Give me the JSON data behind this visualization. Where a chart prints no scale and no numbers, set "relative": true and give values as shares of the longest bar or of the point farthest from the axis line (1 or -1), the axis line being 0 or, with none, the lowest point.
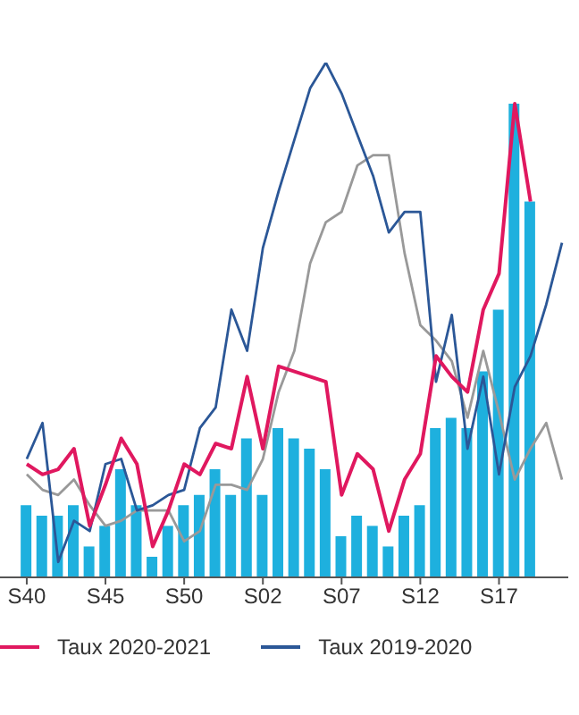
{
  "chart_data": {
    "type": "line",
    "relative": true,
    "categories": [
      "S40",
      null,
      null,
      null,
      null,
      "S45",
      null,
      null,
      null,
      null,
      "S50",
      null,
      null,
      null,
      null,
      "S02",
      null,
      null,
      null,
      null,
      "S07",
      null,
      null,
      null,
      null,
      "S12",
      null,
      null,
      null,
      null,
      "S17",
      null,
      null,
      null,
      null
    ],
    "series": [
      {
        "type": "bar",
        "color": "#1eb0de",
        "values": [
          0.14,
          0.12,
          0.12,
          0.14,
          0.06,
          0.1,
          0.21,
          0.14,
          0.04,
          0.1,
          0.14,
          0.16,
          0.21,
          0.16,
          0.27,
          0.16,
          0.29,
          0.27,
          0.25,
          0.21,
          0.08,
          0.12,
          0.1,
          0.06,
          0.12,
          0.14,
          0.29,
          0.31,
          0.29,
          0.4,
          0.52,
          0.92,
          0.73,
          null,
          null
        ]
      },
      {
        "color": "#999999",
        "values": [
          0.2,
          0.17,
          0.16,
          0.19,
          0.14,
          0.1,
          0.11,
          0.13,
          0.13,
          0.13,
          0.07,
          0.09,
          0.18,
          0.18,
          0.17,
          0.23,
          0.36,
          0.44,
          0.61,
          0.69,
          0.71,
          0.8,
          0.82,
          0.82,
          0.63,
          0.49,
          0.46,
          0.42,
          0.31,
          0.44,
          0.32,
          0.19,
          0.25,
          0.3,
          0.19
        ]
      },
      {
        "name": "Taux 2019-2020",
        "color": "#2b5797",
        "values": [
          0.23,
          0.3,
          0.03,
          0.11,
          0.09,
          0.22,
          0.23,
          0.13,
          0.14,
          0.16,
          0.17,
          0.29,
          0.33,
          0.52,
          0.44,
          0.64,
          0.75,
          0.85,
          0.95,
          1,
          0.94,
          0.86,
          0.78,
          0.67,
          0.71,
          0.71,
          0.38,
          0.51,
          0.25,
          0.39,
          0.2,
          0.37,
          0.43,
          0.53,
          0.65
        ]
      },
      {
        "name": "Taux 2020-2021",
        "color": "#e0185f",
        "values": [
          0.22,
          0.2,
          0.21,
          0.25,
          0.1,
          0.18,
          0.27,
          0.22,
          0.06,
          0.13,
          0.22,
          0.2,
          0.26,
          0.25,
          0.39,
          0.25,
          0.41,
          0.4,
          0.39,
          0.38,
          0.16,
          0.24,
          0.21,
          0.09,
          0.19,
          0.24,
          0.43,
          0.39,
          0.36,
          0.52,
          0.59,
          0.92,
          0.73,
          null,
          null
        ]
      }
    ],
    "legend": "bottom",
    "marker": "none",
    "line_style": "solid",
    "grid": false
  }
}
